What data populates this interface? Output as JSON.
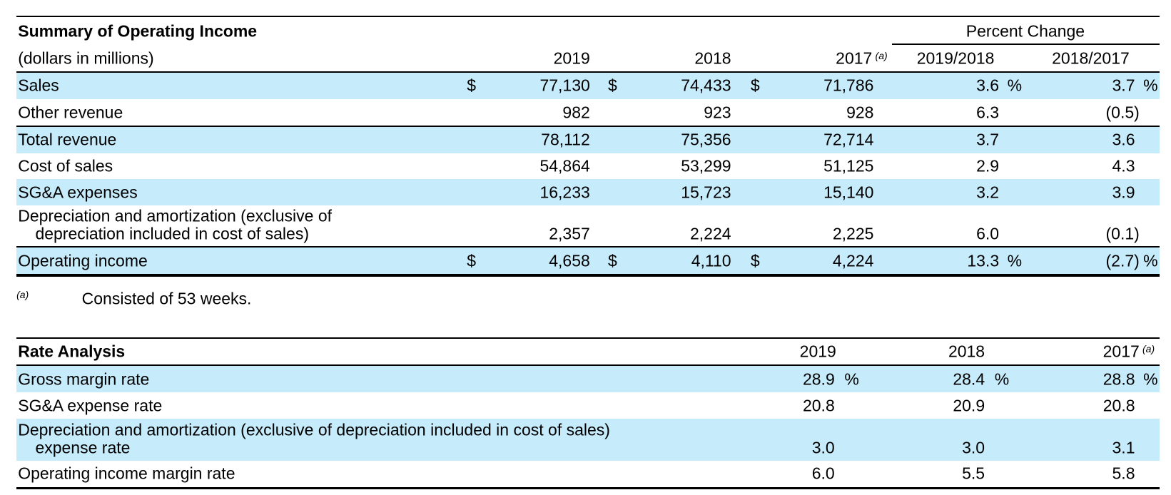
{
  "table1": {
    "title": "Summary of Operating Income",
    "subtitle": "(dollars in millions)",
    "group_header": "Percent Change",
    "columns": [
      "2019",
      "2018",
      "2017",
      "2019/2018",
      "2018/2017"
    ],
    "column_note": "(a)",
    "rows": [
      {
        "label": [
          "Sales"
        ],
        "currency": "$",
        "values": [
          "77,130",
          "74,433",
          "71,786",
          "3.6",
          "3.7"
        ],
        "unit": "%"
      },
      {
        "label": [
          "Other revenue"
        ],
        "values": [
          "982",
          "923",
          "928",
          "6.3",
          "(0.5)"
        ]
      },
      {
        "label": [
          "Total revenue"
        ],
        "values": [
          "78,112",
          "75,356",
          "72,714",
          "3.7",
          "3.6"
        ]
      },
      {
        "label": [
          "Cost of sales"
        ],
        "values": [
          "54,864",
          "53,299",
          "51,125",
          "2.9",
          "4.3"
        ]
      },
      {
        "label": [
          "SG&A expenses"
        ],
        "values": [
          "16,233",
          "15,723",
          "15,140",
          "3.2",
          "3.9"
        ]
      },
      {
        "label": [
          "Depreciation and amortization (exclusive of",
          "depreciation included in cost of sales)"
        ],
        "values": [
          "2,357",
          "2,224",
          "2,225",
          "6.0",
          "(0.1)"
        ]
      },
      {
        "label": [
          "Operating income"
        ],
        "currency": "$",
        "values": [
          "4,658",
          "4,110",
          "4,224",
          "13.3",
          "(2.7)"
        ],
        "unit": "%"
      }
    ]
  },
  "footnote": {
    "marker": "(a)",
    "text": "Consisted of 53 weeks."
  },
  "table2": {
    "title": "Rate Analysis",
    "columns": [
      "2019",
      "2018",
      "2017"
    ],
    "column_note": "(a)",
    "rows": [
      {
        "label": [
          "Gross margin rate"
        ],
        "values": [
          "28.9",
          "28.4",
          "28.8"
        ],
        "unit": "%"
      },
      {
        "label": [
          "SG&A expense rate"
        ],
        "values": [
          "20.8",
          "20.9",
          "20.8"
        ]
      },
      {
        "label": [
          "Depreciation and amortization (exclusive of depreciation included in cost of sales)",
          "expense rate"
        ],
        "values": [
          "3.0",
          "3.0",
          "3.1"
        ]
      },
      {
        "label": [
          "Operating income margin rate"
        ],
        "values": [
          "6.0",
          "5.5",
          "5.8"
        ]
      }
    ]
  }
}
